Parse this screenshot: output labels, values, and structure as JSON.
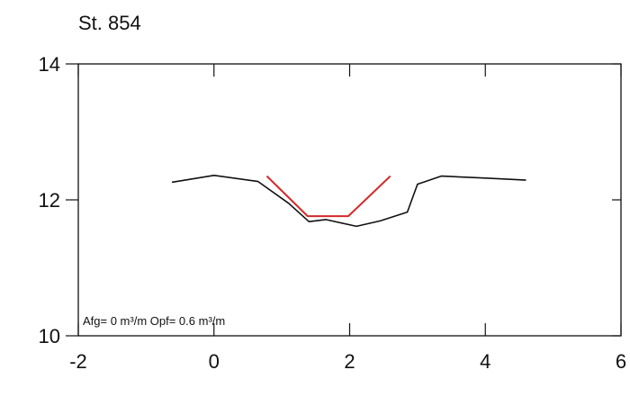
{
  "chart_data": {
    "type": "line",
    "title": "St. 854",
    "xlabel": "",
    "ylabel": "",
    "xlim": [
      -2,
      6
    ],
    "ylim": [
      10,
      14
    ],
    "x_ticks": [
      "-2",
      "0",
      "2",
      "4",
      "6"
    ],
    "y_ticks": [
      "10",
      "12",
      "14"
    ],
    "x_tick_values": [
      -2,
      0,
      2,
      4,
      6
    ],
    "y_tick_values": [
      10,
      12,
      14
    ],
    "grid": false,
    "annotation": "Afg= 0 m³/m  Opf= 0.6 m³/m",
    "series": [
      {
        "color": "#111111",
        "x": [
          -0.62,
          0,
          0.65,
          1.1,
          1.4,
          1.65,
          2.1,
          2.45,
          2.85,
          3.0,
          3.35,
          4.0,
          4.6
        ],
        "y": [
          12.26,
          12.36,
          12.27,
          11.95,
          11.68,
          11.71,
          11.61,
          11.69,
          11.82,
          12.23,
          12.35,
          12.32,
          12.29
        ]
      },
      {
        "color": "#d42a2a",
        "x": [
          0.78,
          1.38,
          1.98,
          2.6
        ],
        "y": [
          12.35,
          11.76,
          11.76,
          12.35
        ]
      }
    ]
  }
}
